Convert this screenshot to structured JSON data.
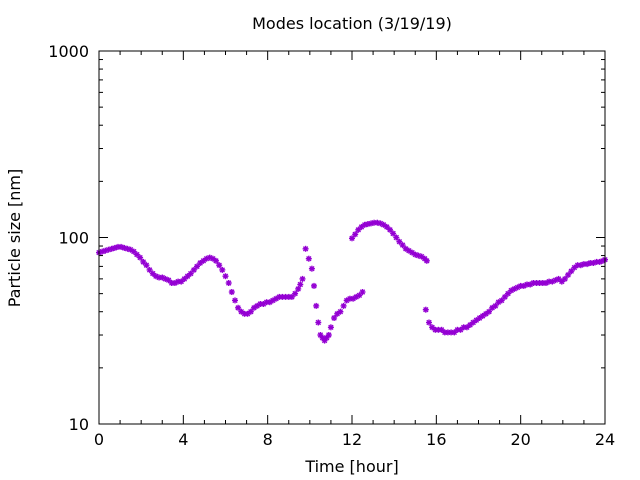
{
  "chart_data": {
    "type": "scatter",
    "title": "Modes location (3/19/19)",
    "xlabel": "Time [hour]",
    "ylabel": "Particle size [nm]",
    "xlim": [
      0,
      24
    ],
    "ylim": [
      10,
      1000
    ],
    "yscale": "log",
    "grid": false,
    "legend": "none",
    "marker_color": "#9400d3",
    "xticks": [
      {
        "value": 0,
        "label": "0"
      },
      {
        "value": 4,
        "label": "4"
      },
      {
        "value": 8,
        "label": "8"
      },
      {
        "value": 12,
        "label": "12"
      },
      {
        "value": 16,
        "label": "16"
      },
      {
        "value": 20,
        "label": "20"
      },
      {
        "value": 24,
        "label": "24"
      }
    ],
    "yticks": [
      {
        "value": 10,
        "label": "10"
      },
      {
        "value": 100,
        "label": "100"
      },
      {
        "value": 1000,
        "label": "1000"
      }
    ],
    "series": [
      {
        "x": [
          0.0,
          0.15,
          0.3,
          0.45,
          0.6,
          0.75,
          0.9,
          1.05,
          1.2,
          1.35,
          1.5,
          1.65,
          1.8,
          1.95,
          2.1,
          2.25,
          2.4,
          2.55,
          2.7,
          2.85,
          3.0,
          3.15,
          3.3,
          3.45,
          3.6,
          3.75,
          3.9,
          4.05,
          4.2,
          4.35,
          4.5,
          4.65,
          4.8,
          4.95,
          5.1,
          5.25,
          5.4,
          5.55,
          5.7,
          5.85,
          6.0,
          6.15,
          6.3,
          6.45,
          6.6,
          6.75,
          6.9,
          7.05,
          7.2,
          7.35,
          7.5,
          7.65,
          7.8,
          7.95,
          8.1,
          8.25,
          8.4,
          8.55,
          8.7,
          8.85,
          9.0,
          9.15,
          9.3,
          9.45,
          9.55,
          9.65
        ],
        "y": [
          83,
          84,
          85,
          86,
          87,
          88,
          89,
          89,
          88,
          87,
          86,
          84,
          81,
          78,
          74,
          71,
          67,
          64,
          62,
          61,
          61,
          60,
          59,
          57,
          57,
          58,
          58,
          60,
          62,
          64,
          67,
          70,
          73,
          75,
          77,
          78,
          77,
          75,
          71,
          67,
          62,
          57,
          51,
          46,
          42,
          40,
          39,
          39,
          40,
          42,
          43,
          44,
          44,
          45,
          45,
          46,
          47,
          48,
          48,
          48,
          48,
          48,
          50,
          53,
          56,
          60
        ]
      },
      {
        "x": [
          9.8,
          9.95,
          10.1,
          10.2,
          10.3,
          10.4,
          10.5,
          10.6,
          10.7,
          10.8,
          10.9,
          11.0,
          11.15,
          11.3,
          11.45,
          11.6,
          11.75,
          11.9,
          12.05,
          12.2,
          12.35,
          12.5
        ],
        "y": [
          87,
          77,
          68,
          55,
          43,
          35,
          30,
          29,
          28,
          29,
          30,
          33,
          37,
          39,
          40,
          43,
          46,
          47,
          47,
          48,
          49,
          51
        ]
      },
      {
        "x": [
          12.0,
          12.15,
          12.3,
          12.45,
          12.6,
          12.75,
          12.9,
          13.05,
          13.2,
          13.35,
          13.5,
          13.65,
          13.8,
          13.95,
          14.1,
          14.25,
          14.4,
          14.55,
          14.7,
          14.85,
          15.0,
          15.15,
          15.3,
          15.45,
          15.55
        ],
        "y": [
          99,
          104,
          110,
          114,
          117,
          118,
          119,
          120,
          120,
          119,
          117,
          114,
          110,
          105,
          100,
          95,
          91,
          87,
          85,
          83,
          81,
          80,
          79,
          77,
          75
        ]
      },
      {
        "x": [
          15.5,
          15.65,
          15.8,
          15.95,
          16.1,
          16.25,
          16.4,
          16.55,
          16.7,
          16.85,
          17.0,
          17.15,
          17.3,
          17.45,
          17.6,
          17.75,
          17.9,
          18.05,
          18.2,
          18.35,
          18.5,
          18.65,
          18.8,
          18.95,
          19.1,
          19.25,
          19.4,
          19.55,
          19.7,
          19.85,
          20.0,
          20.15,
          20.3,
          20.45,
          20.6,
          20.75,
          20.9,
          21.05,
          21.2,
          21.35,
          21.5,
          21.65,
          21.8,
          21.95,
          22.1,
          22.25,
          22.4,
          22.55,
          22.7,
          22.85,
          23.0,
          23.15,
          23.3,
          23.45,
          23.6,
          23.75,
          23.9,
          24.0
        ],
        "y": [
          41,
          35,
          33,
          32,
          32,
          32,
          31,
          31,
          31,
          31,
          32,
          32,
          33,
          33,
          34,
          35,
          36,
          37,
          38,
          39,
          40,
          42,
          43,
          45,
          46,
          48,
          50,
          52,
          53,
          54,
          55,
          55,
          56,
          56,
          57,
          57,
          57,
          57,
          57,
          58,
          58,
          59,
          60,
          58,
          60,
          63,
          66,
          69,
          71,
          71,
          72,
          72,
          73,
          73,
          74,
          74,
          75,
          76
        ]
      }
    ]
  }
}
